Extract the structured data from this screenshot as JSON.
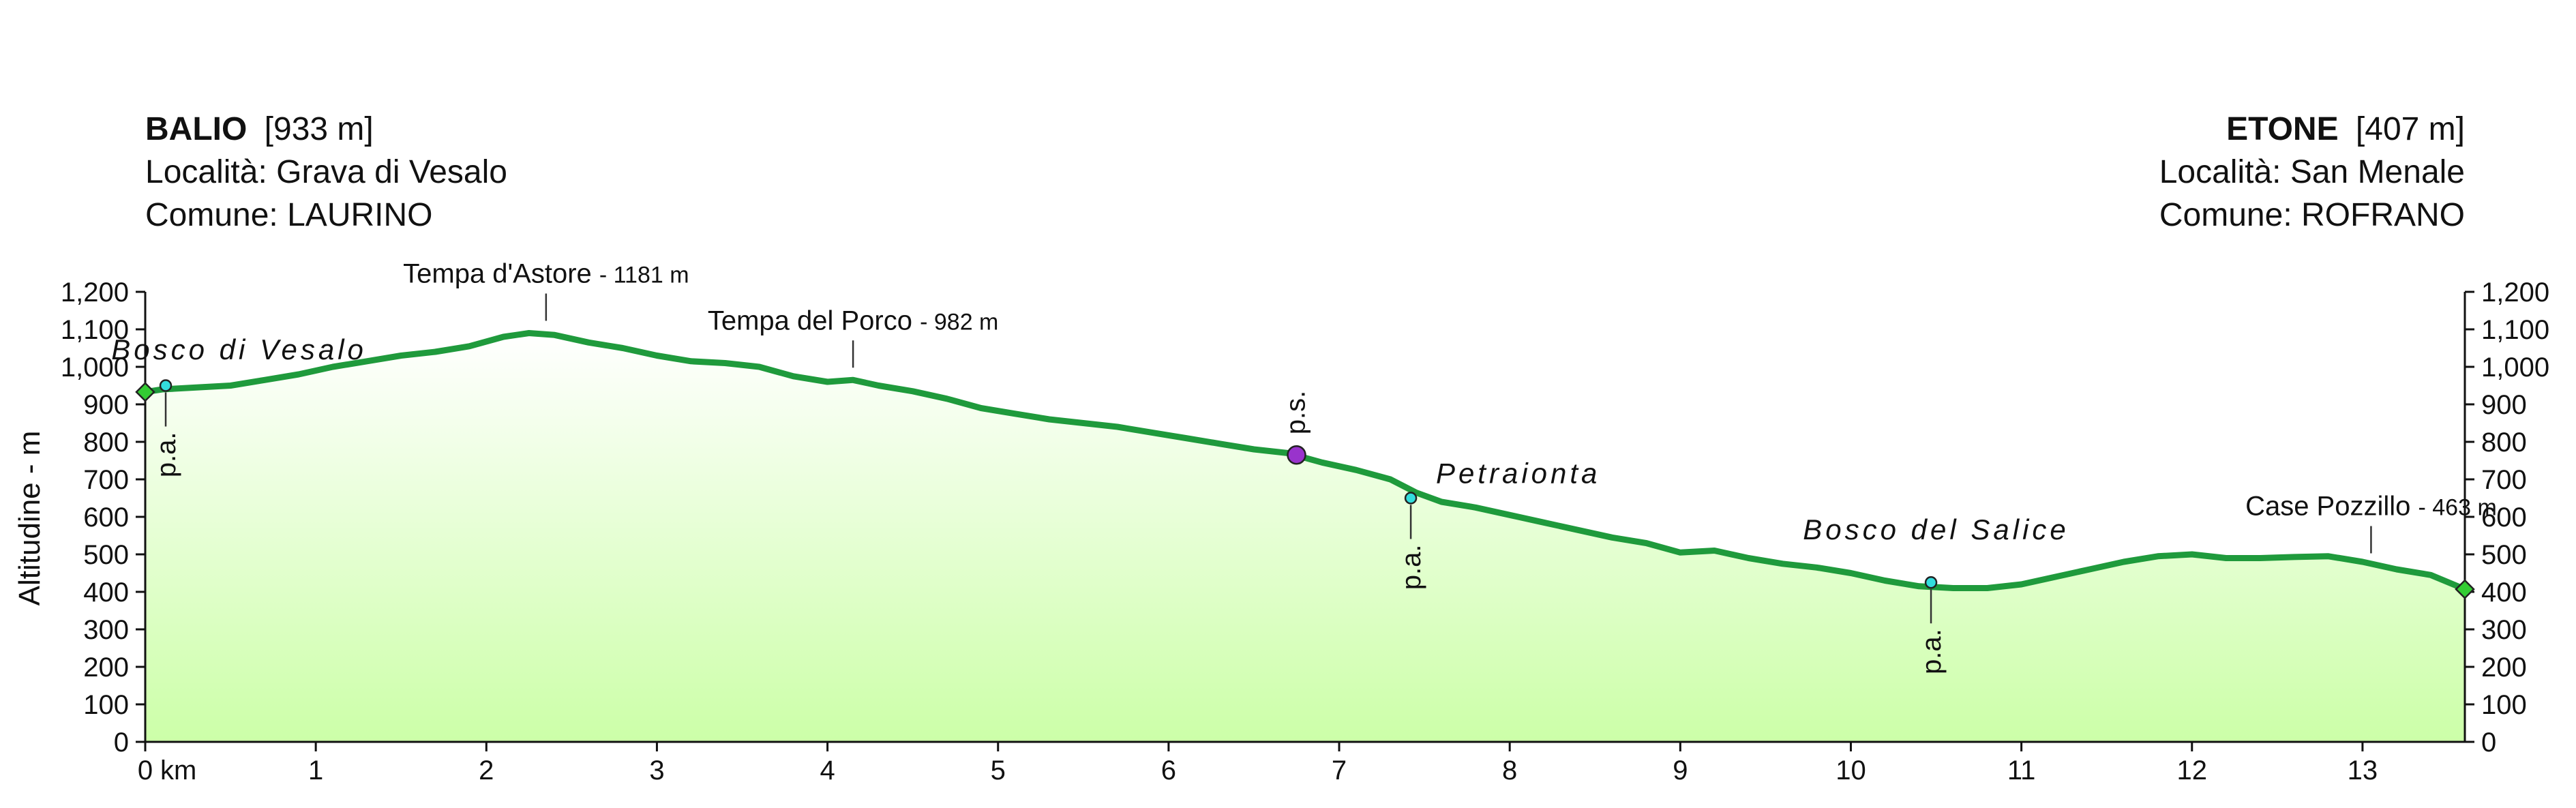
{
  "start": {
    "name": "BALIO",
    "elev": "[933 m]",
    "locality": "Località: Grava di Vesalo",
    "comune": "Comune: LAURINO"
  },
  "end": {
    "name": "ETONE",
    "elev": "[407 m]",
    "locality": "Località: San Menale",
    "comune": "Comune: ROFRANO"
  },
  "colors": {
    "line": "#1f9a3c",
    "fill_top": "#ffffff",
    "fill_bottom": "#ccffa8",
    "marker_green": "#33cc33",
    "marker_cyan": "#33dddd",
    "marker_purple": "#9933cc"
  },
  "chart_data": {
    "type": "area",
    "title": "",
    "xlabel": "km",
    "ylabel": "Altitudine - m",
    "xlim": [
      0,
      13.6
    ],
    "ylim": [
      0,
      1200
    ],
    "x_ticks": [
      0,
      1,
      2,
      3,
      4,
      5,
      6,
      7,
      8,
      9,
      10,
      11,
      12,
      13
    ],
    "y_ticks": [
      "0",
      "100",
      "200",
      "300",
      "400",
      "500",
      "600",
      "700",
      "800",
      "900",
      "1,000",
      "1,100",
      "1,200"
    ],
    "y_tick_values": [
      0,
      100,
      200,
      300,
      400,
      500,
      600,
      700,
      800,
      900,
      1000,
      1100,
      1200
    ],
    "grid": false,
    "series": [
      {
        "x": [
          0,
          0.1,
          0.3,
          0.5,
          0.7,
          0.9,
          1.1,
          1.3,
          1.5,
          1.7,
          1.9,
          2.1,
          2.25,
          2.4,
          2.6,
          2.8,
          3.0,
          3.2,
          3.4,
          3.6,
          3.8,
          4.0,
          4.15,
          4.3,
          4.5,
          4.7,
          4.9,
          5.1,
          5.3,
          5.5,
          5.7,
          5.9,
          6.1,
          6.3,
          6.5,
          6.7,
          6.9,
          7.1,
          7.3,
          7.45,
          7.6,
          7.8,
          8.0,
          8.2,
          8.4,
          8.6,
          8.8,
          9.0,
          9.2,
          9.4,
          9.6,
          9.8,
          10.0,
          10.2,
          10.4,
          10.6,
          10.8,
          11.0,
          11.2,
          11.4,
          11.6,
          11.8,
          12.0,
          12.2,
          12.4,
          12.6,
          12.8,
          13.0,
          13.2,
          13.4,
          13.6
        ],
        "values": [
          933,
          940,
          945,
          950,
          965,
          980,
          1000,
          1015,
          1030,
          1040,
          1055,
          1080,
          1090,
          1085,
          1065,
          1050,
          1030,
          1015,
          1010,
          1000,
          975,
          960,
          965,
          950,
          935,
          915,
          890,
          875,
          860,
          850,
          840,
          825,
          810,
          795,
          780,
          770,
          745,
          725,
          700,
          665,
          640,
          625,
          605,
          585,
          565,
          545,
          530,
          505,
          510,
          490,
          475,
          465,
          450,
          430,
          415,
          410,
          410,
          420,
          440,
          460,
          480,
          495,
          500,
          490,
          490,
          493,
          495,
          480,
          460,
          445,
          407
        ]
      }
    ],
    "annotations": [
      {
        "label": "Tempa d'Astore",
        "suffix": "- 1181 m",
        "x": 2.35,
        "y": 1090
      },
      {
        "label": "Tempa del Porco",
        "suffix": "- 982 m",
        "x": 4.15,
        "y": 965
      },
      {
        "label": "Case Pozzillo",
        "suffix": "- 463 m",
        "x": 13.05,
        "y": 470
      }
    ],
    "places": [
      {
        "label": "Bosco di Vesalo",
        "x": 0.55,
        "y": 1020
      },
      {
        "label": "Petraionta",
        "x": 8.05,
        "y": 690
      },
      {
        "label": "Bosco del Salice",
        "x": 10.5,
        "y": 540
      }
    ],
    "points": [
      {
        "label": "p.a.",
        "x": 0.12,
        "y": 950,
        "kind": "cyan"
      },
      {
        "label": "p.s.",
        "x": 6.75,
        "y": 765,
        "kind": "purple"
      },
      {
        "label": "p.a.",
        "x": 7.42,
        "y": 650,
        "kind": "cyan"
      },
      {
        "label": "p.a.",
        "x": 10.47,
        "y": 425,
        "kind": "cyan"
      }
    ],
    "endpoints": [
      {
        "x": 0,
        "y": 933
      },
      {
        "x": 13.6,
        "y": 407
      }
    ]
  }
}
